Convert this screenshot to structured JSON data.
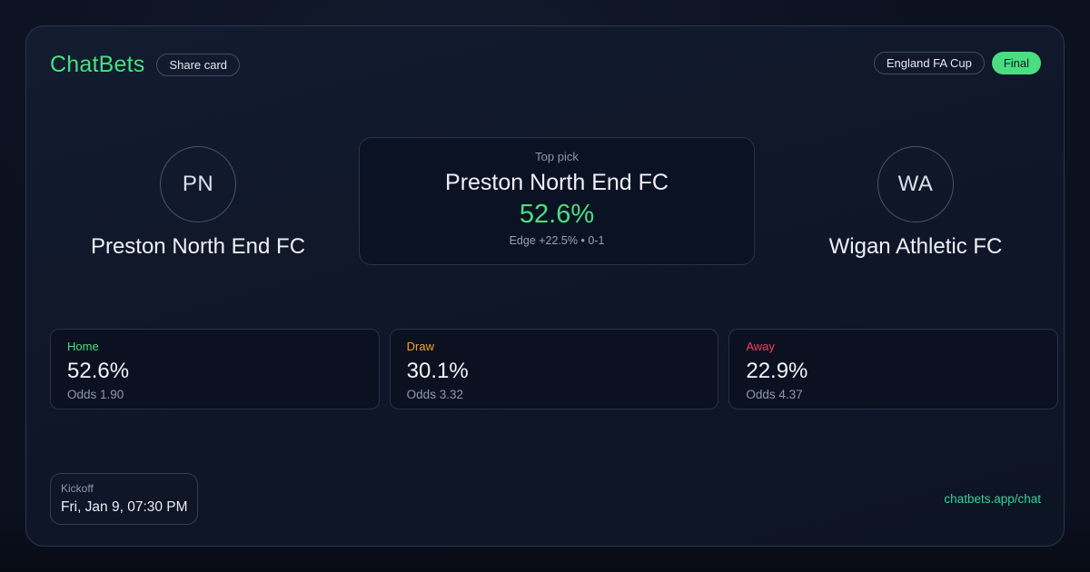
{
  "brand": {
    "title": "ChatBets",
    "share_label": "Share card"
  },
  "header": {
    "league": "England FA Cup",
    "status": "Final"
  },
  "teams": {
    "home": {
      "initials": "PN",
      "name": "Preston North End FC"
    },
    "away": {
      "initials": "WA",
      "name": "Wigan Athletic FC"
    }
  },
  "top_pick": {
    "label": "Top pick",
    "team": "Preston North End FC",
    "probability": "52.6%",
    "edge_note": "Edge +22.5% • 0-1"
  },
  "markets": [
    {
      "label": "Home",
      "probability": "52.6%",
      "odds": "Odds 1.90",
      "color": "#4ade80"
    },
    {
      "label": "Draw",
      "probability": "30.1%",
      "odds": "Odds 3.32",
      "color": "#f5a524"
    },
    {
      "label": "Away",
      "probability": "22.9%",
      "odds": "Odds 4.37",
      "color": "#f43f5e"
    }
  ],
  "kickoff": {
    "label": "Kickoff",
    "value": "Fri, Jan 9, 07:30 PM"
  },
  "footer": {
    "link": "chatbets.app/chat"
  },
  "colors": {
    "accent_green": "#4ade80",
    "link_green": "#34d399",
    "draw_orange": "#f5a524",
    "away_red": "#f43f5e",
    "card_border": "#2b3650"
  }
}
